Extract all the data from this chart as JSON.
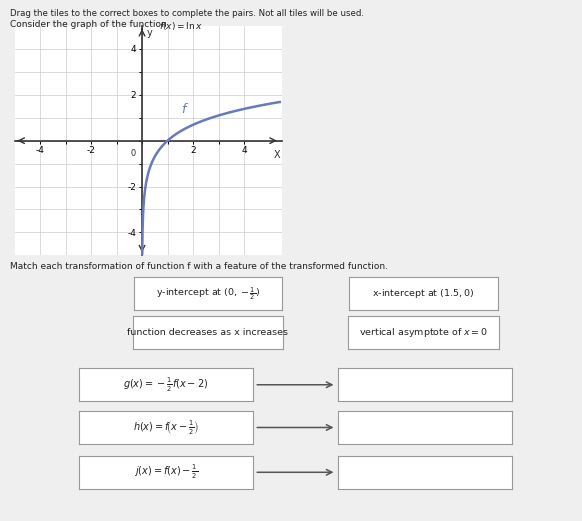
{
  "title_line1": "Drag the tiles to the correct boxes to complete the pairs. Not all tiles will be used.",
  "title_line2a": "Consider the graph of the function ",
  "title_line2b": "f(x) = ln x",
  "graph_xlim": [
    -5,
    5.5
  ],
  "graph_ylim": [
    -5,
    5
  ],
  "match_text": "Match each transformation of function f with a feature of the transformed function.",
  "bg_color": "#efefef",
  "box_facecolor": "#ffffff",
  "box_edgecolor": "#999999",
  "curve_color": "#6677cc",
  "grid_color": "#cccccc",
  "axis_color": "#333333",
  "text_color": "#222222",
  "arrow_color": "#555555",
  "tile1_text": "y-intercept at ",
  "tile1_math": "$(0,-\\frac{1}{2})$",
  "tile2_text": "x-intercept at ",
  "tile2_math": "$(1.5,0)$",
  "tile3_text": "function decreases as x increases",
  "tile4_text": "vertical asymptote of ",
  "tile4_math": "$x = 0$",
  "func1_math": "$g(x) = -\\frac{1}{2}f(x-2)$",
  "func2_math": "$h(x) = f\\left(x-\\frac{1}{2}\\right)$",
  "func3_math": "$j(x) = f(x) - \\frac{1}{2}$"
}
